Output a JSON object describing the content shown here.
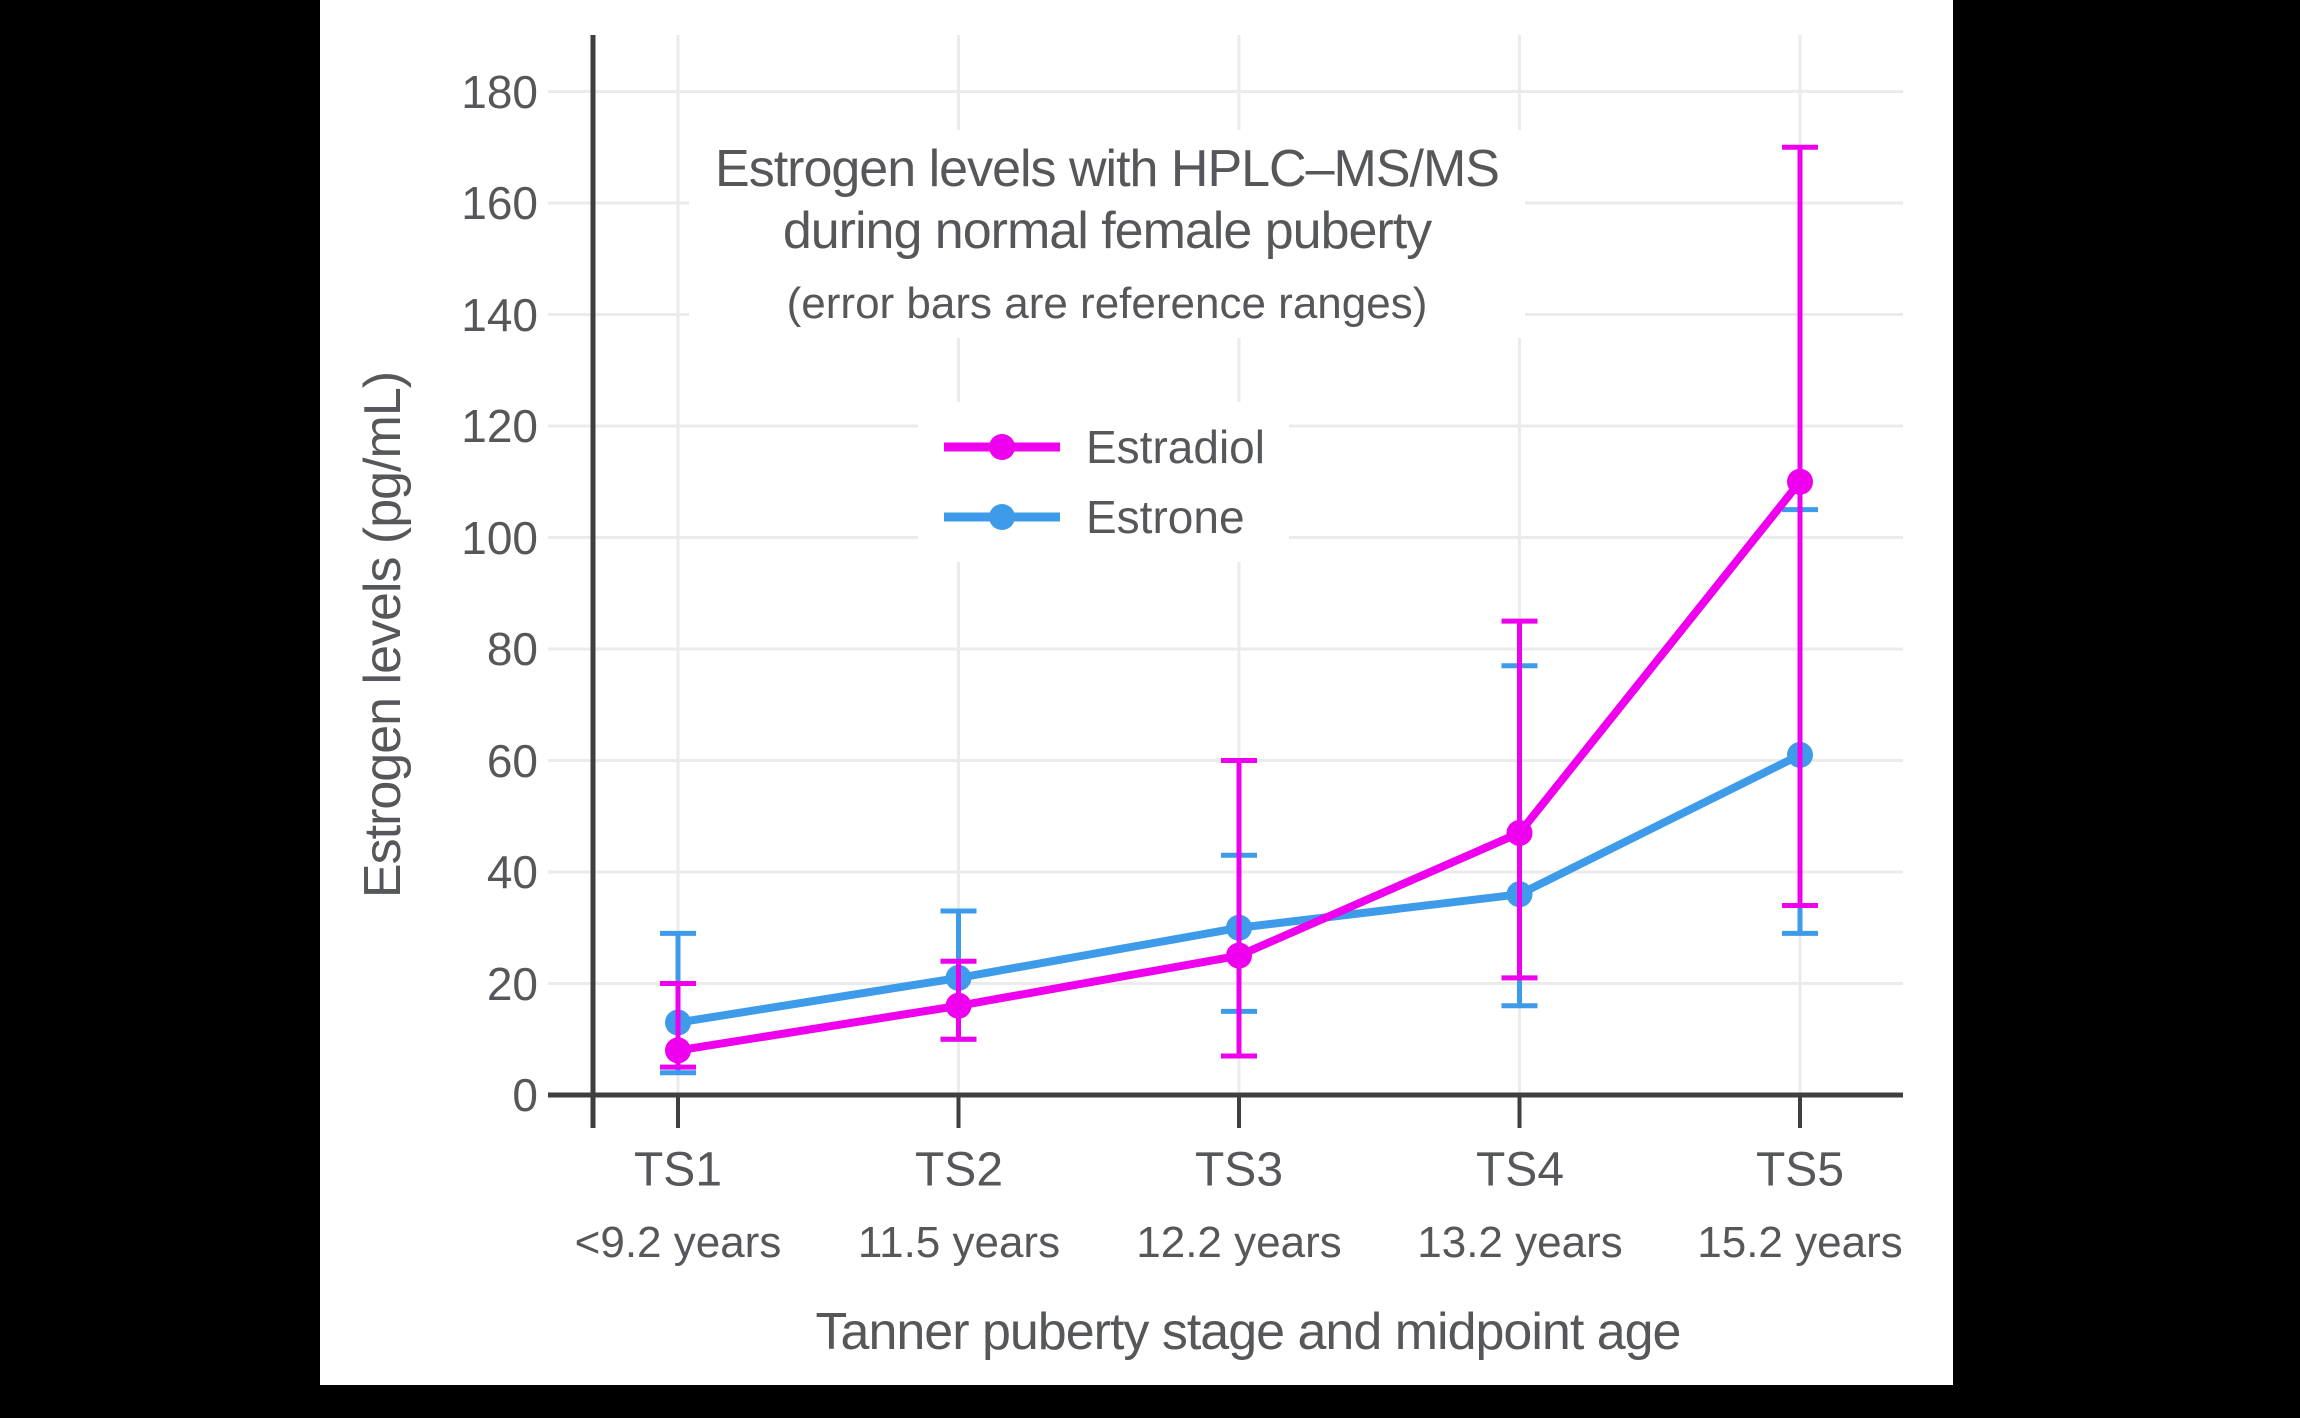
{
  "window": {
    "background": "#000000",
    "canvas_background": "#FFFFFF"
  },
  "chart_data": {
    "type": "line",
    "title_lines": [
      "Estrogen levels with HPLC–MS/MS",
      "during normal female puberty"
    ],
    "subtitle": "(error bars are reference ranges)",
    "xlabel": "Tanner puberty stage and midpoint age",
    "ylabel": "Estrogen levels (pg/mL)",
    "categories": [
      "TS1",
      "TS2",
      "TS3",
      "TS4",
      "TS5"
    ],
    "category_ages": [
      "<9.2 years",
      "11.5 years",
      "12.2 years",
      "13.2 years",
      "15.2 years"
    ],
    "y_ticks": [
      0,
      20,
      40,
      60,
      80,
      100,
      120,
      140,
      160,
      180
    ],
    "ylim": [
      0,
      190
    ],
    "grid": true,
    "legend": {
      "position": "inside-top-center",
      "entries": [
        "Estradiol",
        "Estrone"
      ]
    },
    "series": [
      {
        "name": "Estradiol",
        "color": "#EE00EE",
        "values": [
          8,
          16,
          25,
          47,
          110
        ],
        "range_low": [
          5,
          10,
          7,
          21,
          34
        ],
        "range_high": [
          20,
          24,
          60,
          85,
          170
        ]
      },
      {
        "name": "Estrone",
        "color": "#3D9BE9",
        "values": [
          13,
          21,
          30,
          36,
          61
        ],
        "range_low": [
          4,
          10,
          15,
          16,
          29
        ],
        "range_high": [
          29,
          33,
          43,
          77,
          105
        ]
      }
    ],
    "colors": {
      "grid": "#EBEBEB",
      "axis": "#3F3F41",
      "text": "#56575A"
    }
  }
}
